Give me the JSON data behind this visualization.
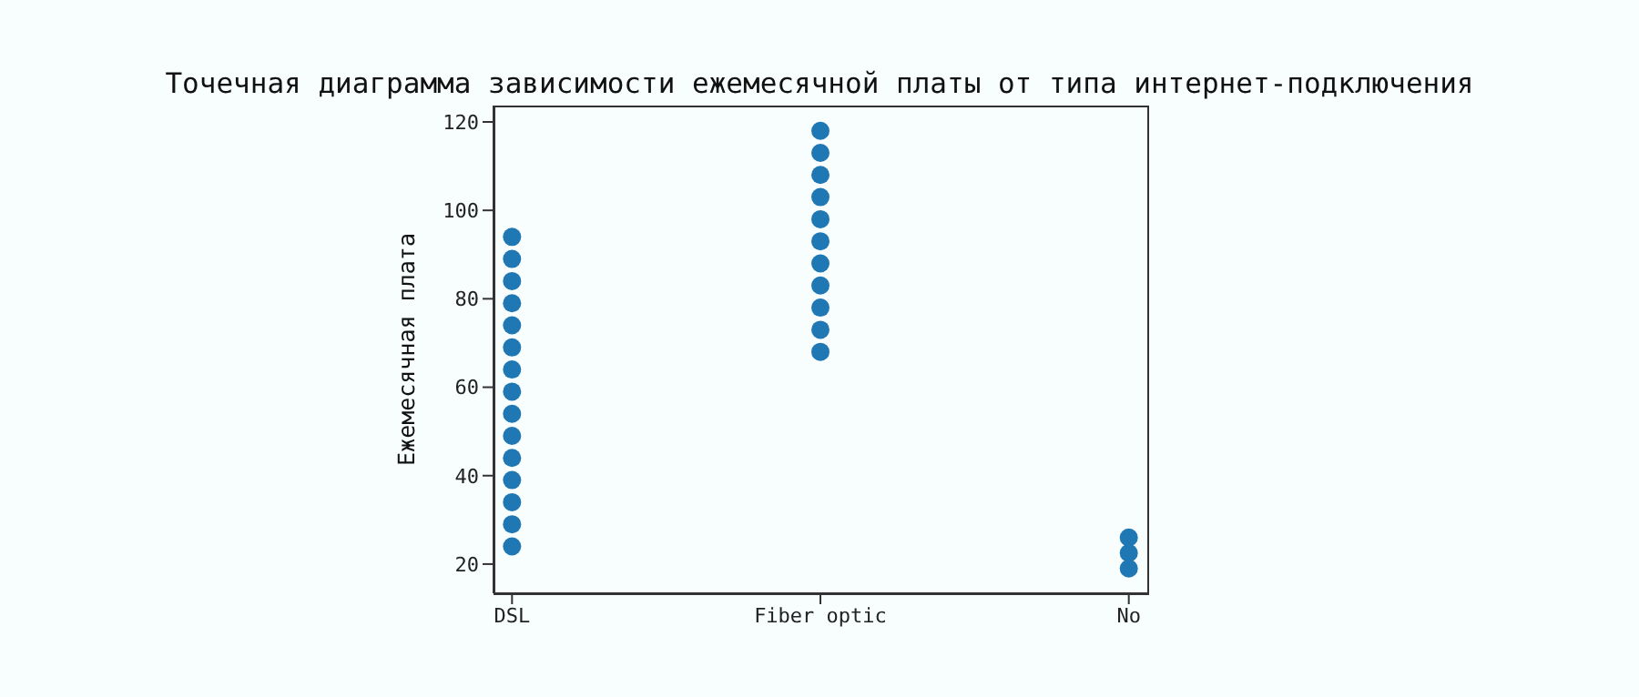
{
  "chart_data": {
    "type": "scatter",
    "title": "Точечная диаграмма зависимости ежемесячной платы от типа интернет-подключения",
    "ylabel": "Ежемесячная плата",
    "categories": [
      "DSL",
      "Fiber optic",
      "No"
    ],
    "ylim": [
      13.4,
      123.7
    ],
    "yticks": [
      20,
      40,
      60,
      80,
      100,
      120
    ],
    "grid": false,
    "legend": false,
    "marker": "circle",
    "series": [
      {
        "color": "#1f77b4",
        "x": [
          "DSL",
          "DSL",
          "DSL",
          "DSL",
          "DSL",
          "DSL",
          "DSL",
          "DSL",
          "DSL",
          "DSL",
          "DSL",
          "DSL",
          "DSL",
          "DSL",
          "DSL",
          "Fiber optic",
          "Fiber optic",
          "Fiber optic",
          "Fiber optic",
          "Fiber optic",
          "Fiber optic",
          "Fiber optic",
          "Fiber optic",
          "Fiber optic",
          "Fiber optic",
          "Fiber optic",
          "No",
          "No",
          "No"
        ],
        "values": [
          24,
          29,
          34,
          39,
          44,
          49,
          54,
          59,
          64,
          69,
          74,
          79,
          84,
          89,
          94,
          68,
          73,
          78,
          83,
          88,
          93,
          98,
          103,
          108,
          113,
          118,
          19,
          22.5,
          26
        ]
      }
    ]
  }
}
